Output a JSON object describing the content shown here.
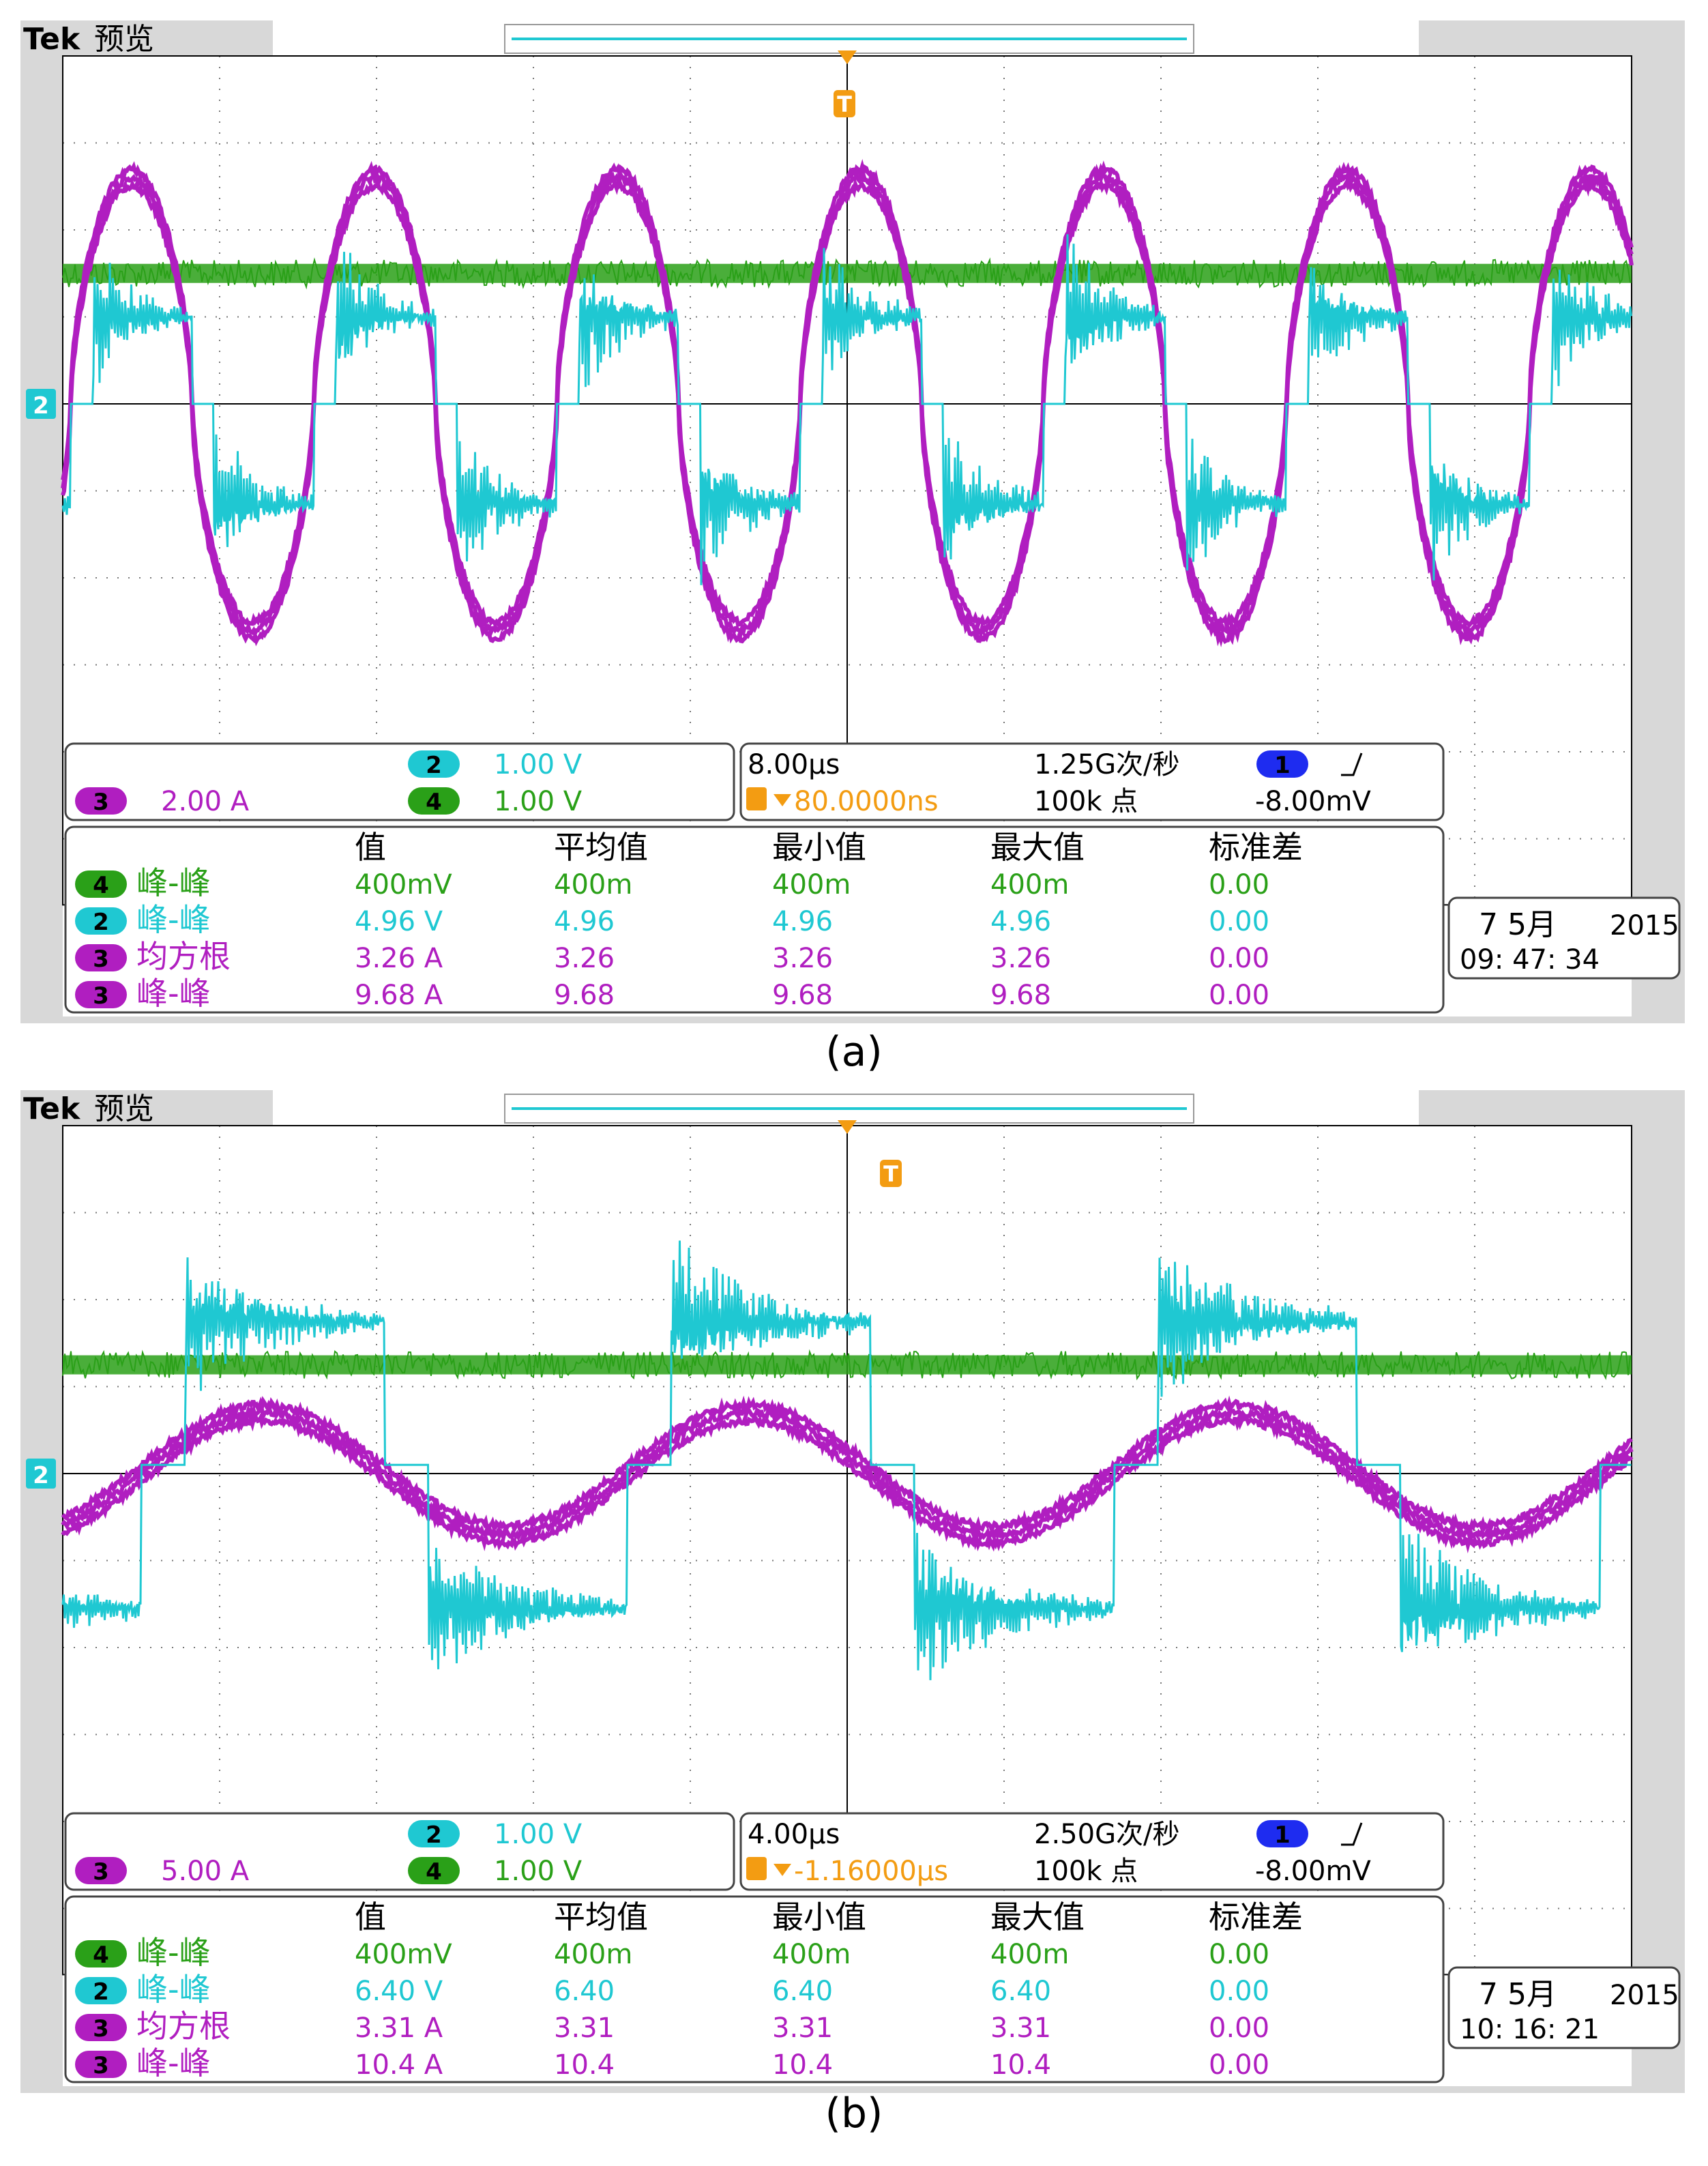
{
  "colors": {
    "ch1": "#1e2cf0",
    "ch2": "#1fc8d2",
    "ch3": "#b01ec0",
    "ch4": "#2aa018",
    "trigger": "#f39c12",
    "grid": "#000000",
    "frame": "#d8d8d8"
  },
  "chart_data": [
    {
      "type": "line",
      "panel_caption": "(a)",
      "header": {
        "brand": "Tek",
        "mode": "预览"
      },
      "trigger_marker": "T",
      "channel2_marker": "2",
      "x_divisions": 10,
      "y_divisions": 8,
      "series": [
        {
          "channel": "2",
          "values_description": "square wave with ringing"
        },
        {
          "channel": "3",
          "values_description": "quasi-sinusoidal current"
        },
        {
          "channel": "4",
          "values_description": "flat noisy line"
        }
      ],
      "waveform_model": {
        "period_div": 1.55,
        "phase_div": 0.05,
        "ch3_amp_div": 2.6,
        "ch2_high_div": 1.0,
        "ch2_low_div": -1.15,
        "ch2_step_div": 0.0,
        "ch4_level_div": 1.5
      },
      "scale_box": {
        "ch3_num": "3",
        "ch3_scale": "2.00 A",
        "ch2_num": "2",
        "ch2_scale": "1.00 V",
        "ch4_num": "4",
        "ch4_scale": "1.00 V"
      },
      "time_box": {
        "timebase": "8.00µs",
        "sample_rate": "1.25G次/秒",
        "trigger_offset": "80.0000ns",
        "record_length": "100k 点",
        "trig_ch": "1",
        "trig_level": "-8.00mV"
      },
      "measure_headers": [
        "值",
        "平均值",
        "最小值",
        "最大值",
        "标准差"
      ],
      "measurements": [
        {
          "ch": "4",
          "label": "峰-峰",
          "value": "400mV",
          "mean": "400m",
          "min": "400m",
          "max": "400m",
          "std": "0.00"
        },
        {
          "ch": "2",
          "label": "峰-峰",
          "value": "4.96 V",
          "mean": "4.96",
          "min": "4.96",
          "max": "4.96",
          "std": "0.00"
        },
        {
          "ch": "3",
          "label": "均方根",
          "value": "3.26 A",
          "mean": "3.26",
          "min": "3.26",
          "max": "3.26",
          "std": "0.00"
        },
        {
          "ch": "3",
          "label": "峰-峰",
          "value": "9.68 A",
          "mean": "9.68",
          "min": "9.68",
          "max": "9.68",
          "std": "0.00"
        }
      ],
      "datetime": {
        "date": "7 5月",
        "year": "2015",
        "time": "09: 47: 34"
      }
    },
    {
      "type": "line",
      "panel_caption": "(b)",
      "header": {
        "brand": "Tek",
        "mode": "预览"
      },
      "trigger_marker": "T",
      "channel2_marker": "2",
      "x_divisions": 10,
      "y_divisions": 8,
      "series": [
        {
          "channel": "2",
          "values_description": "square wave with ringing"
        },
        {
          "channel": "3",
          "values_description": "quasi-sinusoidal current"
        },
        {
          "channel": "4",
          "values_description": "flat noisy line"
        }
      ],
      "waveform_model": {
        "period_div": 3.1,
        "phase_div": 0.5,
        "ch3_amp_div": 0.7,
        "ch2_high_div": 1.75,
        "ch2_low_div": -1.55,
        "ch2_step_div": 0.1,
        "ch4_level_div": 1.25
      },
      "scale_box": {
        "ch3_num": "3",
        "ch3_scale": "5.00 A",
        "ch2_num": "2",
        "ch2_scale": "1.00 V",
        "ch4_num": "4",
        "ch4_scale": "1.00 V"
      },
      "time_box": {
        "timebase": "4.00µs",
        "sample_rate": "2.50G次/秒",
        "trigger_offset": "-1.16000µs",
        "record_length": "100k 点",
        "trig_ch": "1",
        "trig_level": "-8.00mV"
      },
      "measure_headers": [
        "值",
        "平均值",
        "最小值",
        "最大值",
        "标准差"
      ],
      "measurements": [
        {
          "ch": "4",
          "label": "峰-峰",
          "value": "400mV",
          "mean": "400m",
          "min": "400m",
          "max": "400m",
          "std": "0.00"
        },
        {
          "ch": "2",
          "label": "峰-峰",
          "value": "6.40 V",
          "mean": "6.40",
          "min": "6.40",
          "max": "6.40",
          "std": "0.00"
        },
        {
          "ch": "3",
          "label": "均方根",
          "value": "3.31 A",
          "mean": "3.31",
          "min": "3.31",
          "max": "3.31",
          "std": "0.00"
        },
        {
          "ch": "3",
          "label": "峰-峰",
          "value": "10.4 A",
          "mean": "10.4",
          "min": "10.4",
          "max": "10.4",
          "std": "0.00"
        }
      ],
      "datetime": {
        "date": "7 5月",
        "year": "2015",
        "time": "10: 16: 21"
      }
    }
  ]
}
